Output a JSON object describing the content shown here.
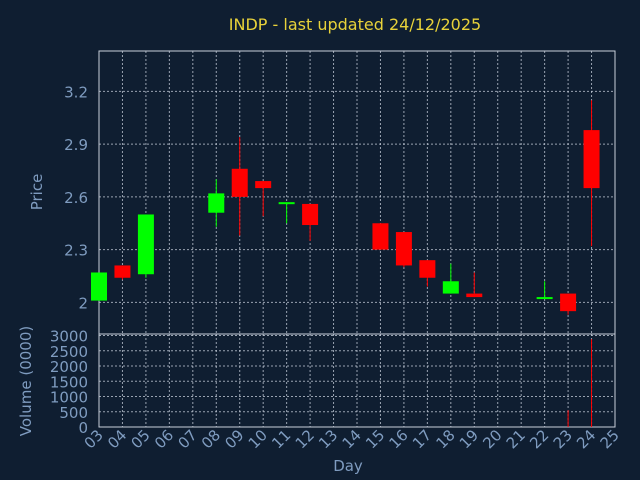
{
  "chart_data": {
    "type": "candlestick",
    "title": "INDP - last updated 24/12/2025",
    "xlabel": "Day",
    "x_ticks": [
      "03",
      "04",
      "05",
      "06",
      "07",
      "08",
      "09",
      "10",
      "11",
      "12",
      "13",
      "14",
      "15",
      "16",
      "17",
      "18",
      "19",
      "20",
      "21",
      "22",
      "23",
      "24",
      "25"
    ],
    "colors": {
      "up": "#00ff00",
      "down": "#ff0000",
      "background": "#0f1e31",
      "title": "#e8d23a",
      "axis_text": "#7f9cc0",
      "grid": "#c8d0dc"
    },
    "price_panel": {
      "ylabel": "Price",
      "ylim": [
        1.82,
        3.43
      ],
      "y_ticks": [
        2,
        2.3,
        2.6,
        2.9,
        3.2
      ],
      "y_tick_labels": [
        "2",
        "2.3",
        "2.6",
        "2.9",
        "3.2"
      ],
      "grid": true
    },
    "volume_panel": {
      "ylabel": "Volume (0000)",
      "ylim": [
        0,
        3050
      ],
      "y_ticks": [
        0,
        500,
        1000,
        1500,
        2000,
        2500,
        3000
      ],
      "y_tick_labels": [
        "0",
        "500",
        "1000",
        "1500",
        "2000",
        "2500",
        "3000"
      ],
      "grid": true
    },
    "candles": [
      {
        "day": 3,
        "open": 2.01,
        "high": 2.17,
        "low": 2.01,
        "close": 2.17,
        "volume": 0
      },
      {
        "day": 4,
        "open": 2.21,
        "high": 2.21,
        "low": 2.13,
        "close": 2.14,
        "volume": 0
      },
      {
        "day": 5,
        "open": 2.16,
        "high": 2.5,
        "low": 2.14,
        "close": 2.5,
        "volume": 0
      },
      {
        "day": 8,
        "open": 2.51,
        "high": 2.7,
        "low": 2.43,
        "close": 2.62,
        "volume": 0
      },
      {
        "day": 9,
        "open": 2.76,
        "high": 2.94,
        "low": 2.38,
        "close": 2.6,
        "volume": 0
      },
      {
        "day": 10,
        "open": 2.69,
        "high": 2.69,
        "low": 2.49,
        "close": 2.65,
        "volume": 0
      },
      {
        "day": 11,
        "open": 2.56,
        "high": 2.57,
        "low": 2.45,
        "close": 2.57,
        "volume": 0
      },
      {
        "day": 12,
        "open": 2.56,
        "high": 2.56,
        "low": 2.35,
        "close": 2.44,
        "volume": 0
      },
      {
        "day": 15,
        "open": 2.45,
        "high": 2.45,
        "low": 2.3,
        "close": 2.3,
        "volume": 0
      },
      {
        "day": 16,
        "open": 2.4,
        "high": 2.4,
        "low": 2.2,
        "close": 2.21,
        "volume": 0
      },
      {
        "day": 17,
        "open": 2.24,
        "high": 2.24,
        "low": 2.09,
        "close": 2.14,
        "volume": 0
      },
      {
        "day": 18,
        "open": 2.05,
        "high": 2.22,
        "low": 2.05,
        "close": 2.12,
        "volume": 0
      },
      {
        "day": 19,
        "open": 2.05,
        "high": 2.17,
        "low": 2.03,
        "close": 2.03,
        "volume": 0
      },
      {
        "day": 22,
        "open": 2.02,
        "high": 2.12,
        "low": 2.02,
        "close": 2.03,
        "volume": 0
      },
      {
        "day": 23,
        "open": 2.05,
        "high": 2.05,
        "low": 1.93,
        "close": 1.95,
        "volume": 550
      },
      {
        "day": 24,
        "open": 2.98,
        "high": 3.15,
        "low": 2.32,
        "close": 2.65,
        "volume": 2880
      }
    ]
  }
}
